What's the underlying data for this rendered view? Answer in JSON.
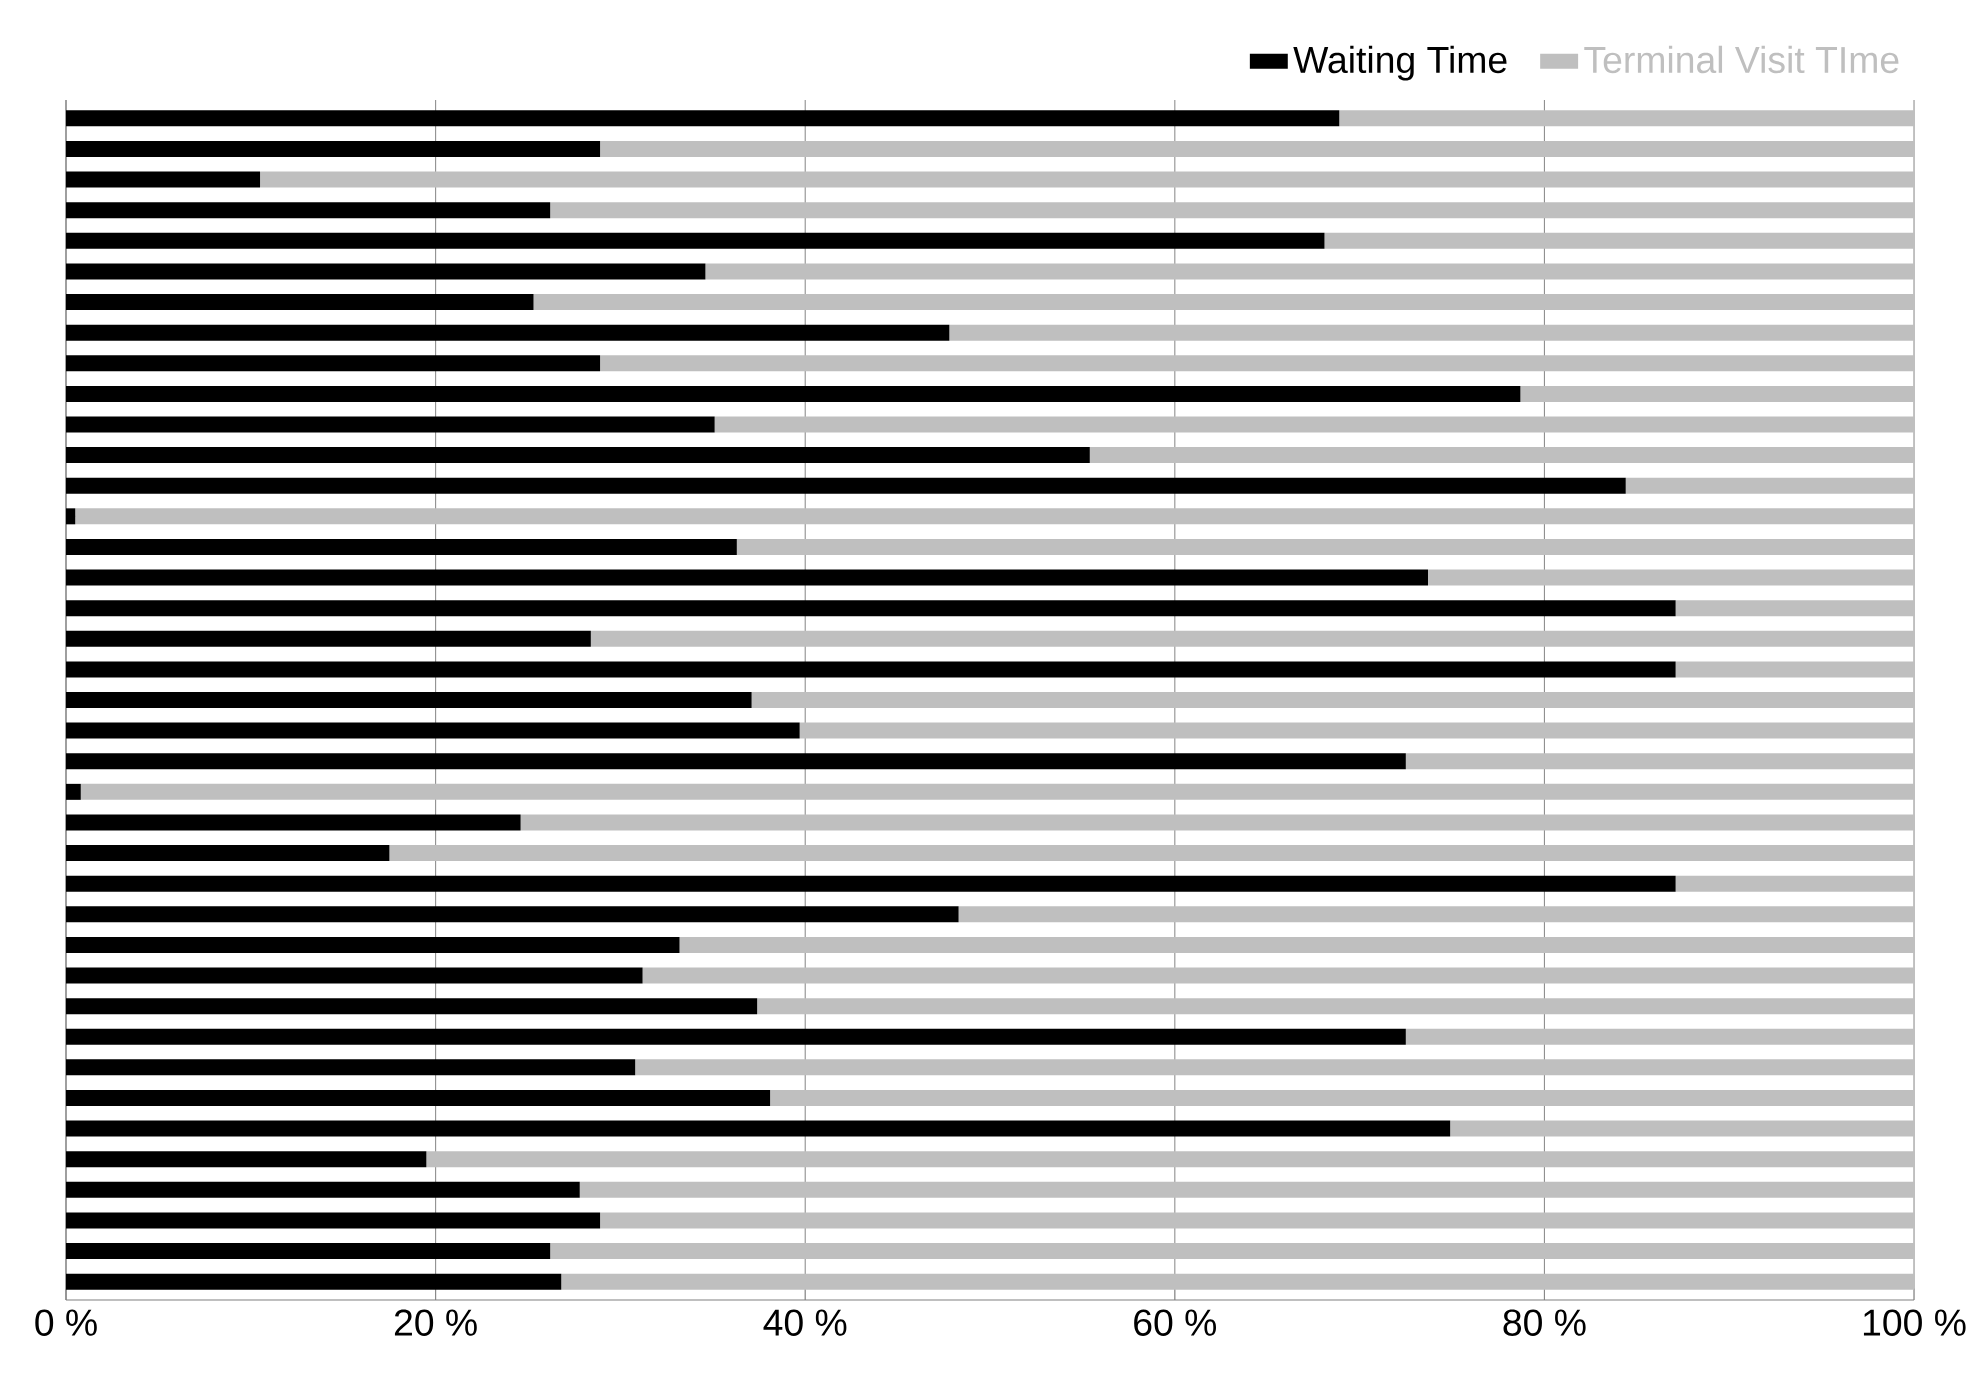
{
  "chart_data": {
    "type": "bar",
    "orientation": "horizontal",
    "stacked": true,
    "categories": [
      null,
      null,
      null,
      null,
      null,
      null,
      null,
      null,
      null,
      null,
      null,
      null,
      null,
      null,
      null,
      null,
      null,
      null,
      null,
      null,
      null,
      null,
      null,
      null,
      null,
      null,
      null,
      null,
      null,
      null,
      null,
      null,
      null,
      null,
      null,
      null,
      null,
      null,
      null
    ],
    "series": [
      {
        "name": "Waiting Time",
        "color": "#000000",
        "values": [
          68.9,
          28.9,
          10.5,
          26.2,
          68.1,
          34.6,
          25.3,
          47.8,
          28.9,
          78.7,
          35.1,
          55.4,
          84.4,
          0.5,
          36.3,
          73.7,
          87.1,
          28.4,
          87.1,
          37.1,
          39.7,
          72.5,
          0.8,
          24.6,
          17.5,
          87.1,
          48.3,
          33.2,
          31.2,
          37.4,
          72.5,
          30.8,
          38.1,
          74.9,
          19.5,
          27.8,
          28.9,
          26.2,
          26.8
        ]
      },
      {
        "name": "Terminal Visit TIme",
        "color": "#bfbfbf",
        "values": [
          31.1,
          71.1,
          89.5,
          73.8,
          31.9,
          65.4,
          74.7,
          52.2,
          71.1,
          21.3,
          64.9,
          44.6,
          15.6,
          99.5,
          63.7,
          26.3,
          12.9,
          71.6,
          12.9,
          62.9,
          60.3,
          27.5,
          99.2,
          75.4,
          82.5,
          12.9,
          51.7,
          66.8,
          68.8,
          62.6,
          27.5,
          69.2,
          61.9,
          25.1,
          80.5,
          72.2,
          71.1,
          73.8,
          73.2
        ]
      }
    ],
    "xlim": [
      0,
      100
    ],
    "xticks": [
      {
        "value": 0,
        "label": "0 %"
      },
      {
        "value": 20,
        "label": "20 %"
      },
      {
        "value": 40,
        "label": "40 %"
      },
      {
        "value": 60,
        "label": "60 %"
      },
      {
        "value": 80,
        "label": "80 %"
      },
      {
        "value": 100,
        "label": "100 %"
      }
    ],
    "grid": "x",
    "legend": "top right"
  }
}
